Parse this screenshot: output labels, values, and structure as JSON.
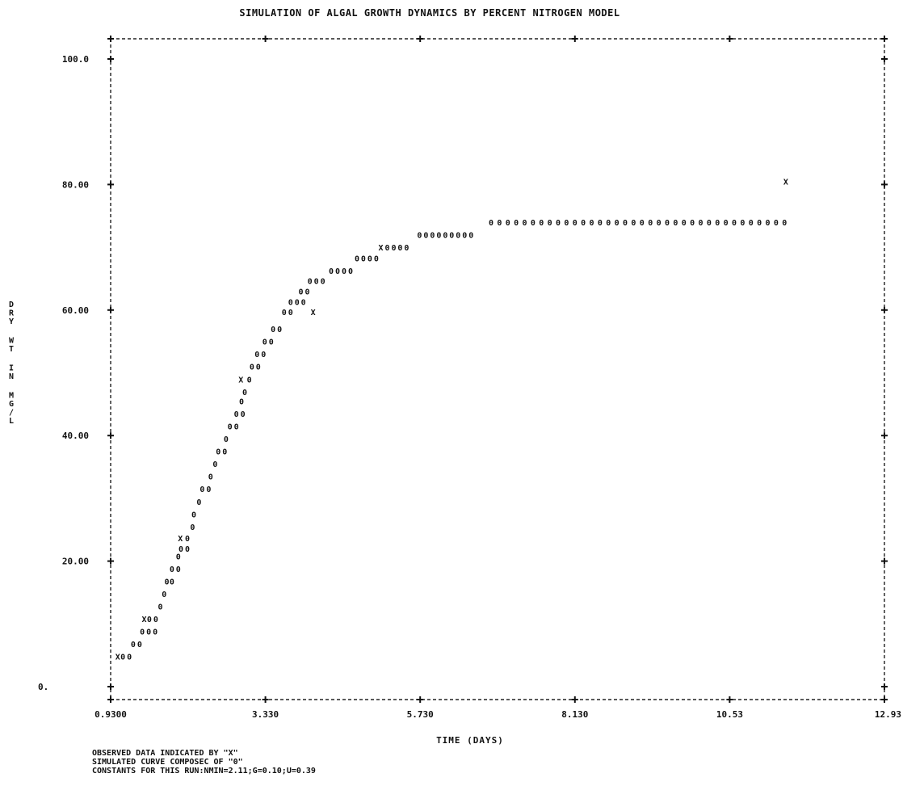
{
  "chart_data": {
    "type": "scatter",
    "title": "SIMULATION OF ALGAL GROWTH DYNAMICS BY PERCENT NITROGEN MODEL",
    "xlabel": "TIME (DAYS)",
    "ylabel": "DRY WT IN MG/L",
    "xlim": [
      0.93,
      12.93
    ],
    "ylim": [
      0,
      100
    ],
    "x_ticks": [
      "0.9300",
      "3.330",
      "5.730",
      "8.130",
      "10.53",
      "12.93"
    ],
    "y_ticks": [
      "0.",
      "20.00",
      "40.00",
      "60.00",
      "80.00",
      "100.0"
    ],
    "series": [
      {
        "marker": "X",
        "points": [
          {
            "x": 1.04,
            "y": 4.8
          },
          {
            "x": 1.45,
            "y": 10.8
          },
          {
            "x": 2.01,
            "y": 23.7
          },
          {
            "x": 2.95,
            "y": 49.0
          },
          {
            "x": 4.07,
            "y": 59.7
          },
          {
            "x": 5.12,
            "y": 70.0
          },
          {
            "x": 11.4,
            "y": 80.5
          }
        ]
      },
      {
        "marker": "0",
        "points": [
          {
            "x": 1.12,
            "y": 4.8
          },
          {
            "x": 1.22,
            "y": 4.8
          },
          {
            "x": 1.28,
            "y": 6.8
          },
          {
            "x": 1.38,
            "y": 6.8
          },
          {
            "x": 1.42,
            "y": 8.8
          },
          {
            "x": 1.52,
            "y": 8.8
          },
          {
            "x": 1.62,
            "y": 8.8
          },
          {
            "x": 1.53,
            "y": 10.8
          },
          {
            "x": 1.63,
            "y": 10.8
          },
          {
            "x": 1.7,
            "y": 12.8
          },
          {
            "x": 1.76,
            "y": 14.8
          },
          {
            "x": 1.8,
            "y": 16.8
          },
          {
            "x": 1.88,
            "y": 16.8
          },
          {
            "x": 1.88,
            "y": 18.8
          },
          {
            "x": 1.98,
            "y": 18.8
          },
          {
            "x": 1.98,
            "y": 20.8
          },
          {
            "x": 2.02,
            "y": 22.0
          },
          {
            "x": 2.12,
            "y": 22.0
          },
          {
            "x": 2.12,
            "y": 23.7
          },
          {
            "x": 2.2,
            "y": 25.5
          },
          {
            "x": 2.22,
            "y": 27.5
          },
          {
            "x": 2.3,
            "y": 29.5
          },
          {
            "x": 2.35,
            "y": 31.5
          },
          {
            "x": 2.45,
            "y": 31.5
          },
          {
            "x": 2.48,
            "y": 33.5
          },
          {
            "x": 2.55,
            "y": 35.5
          },
          {
            "x": 2.6,
            "y": 37.5
          },
          {
            "x": 2.7,
            "y": 37.5
          },
          {
            "x": 2.72,
            "y": 39.5
          },
          {
            "x": 2.78,
            "y": 41.5
          },
          {
            "x": 2.88,
            "y": 41.5
          },
          {
            "x": 2.88,
            "y": 43.5
          },
          {
            "x": 2.98,
            "y": 43.5
          },
          {
            "x": 2.96,
            "y": 45.5
          },
          {
            "x": 3.01,
            "y": 47.0
          },
          {
            "x": 3.08,
            "y": 49.0
          },
          {
            "x": 3.12,
            "y": 51.0
          },
          {
            "x": 3.22,
            "y": 51.0
          },
          {
            "x": 3.2,
            "y": 53.0
          },
          {
            "x": 3.3,
            "y": 53.0
          },
          {
            "x": 3.32,
            "y": 55.0
          },
          {
            "x": 3.42,
            "y": 55.0
          },
          {
            "x": 3.45,
            "y": 57.0
          },
          {
            "x": 3.55,
            "y": 57.0
          },
          {
            "x": 3.62,
            "y": 59.7
          },
          {
            "x": 3.72,
            "y": 59.7
          },
          {
            "x": 3.72,
            "y": 61.3
          },
          {
            "x": 3.82,
            "y": 61.3
          },
          {
            "x": 3.92,
            "y": 61.3
          },
          {
            "x": 3.88,
            "y": 63.0
          },
          {
            "x": 3.98,
            "y": 63.0
          },
          {
            "x": 4.02,
            "y": 64.7
          },
          {
            "x": 4.12,
            "y": 64.7
          },
          {
            "x": 4.22,
            "y": 64.7
          },
          {
            "x": 4.35,
            "y": 66.3
          },
          {
            "x": 4.45,
            "y": 66.3
          },
          {
            "x": 4.55,
            "y": 66.3
          },
          {
            "x": 4.65,
            "y": 66.3
          },
          {
            "x": 4.75,
            "y": 68.3
          },
          {
            "x": 4.85,
            "y": 68.3
          },
          {
            "x": 4.95,
            "y": 68.3
          },
          {
            "x": 5.05,
            "y": 68.3
          },
          {
            "x": 5.22,
            "y": 70.0
          },
          {
            "x": 5.32,
            "y": 70.0
          },
          {
            "x": 5.42,
            "y": 70.0
          },
          {
            "x": 5.52,
            "y": 70.0
          },
          {
            "x": 5.72,
            "y": 72.0
          },
          {
            "x": 5.82,
            "y": 72.0
          },
          {
            "x": 5.92,
            "y": 72.0
          },
          {
            "x": 6.02,
            "y": 72.0
          },
          {
            "x": 6.12,
            "y": 72.0
          },
          {
            "x": 6.22,
            "y": 72.0
          },
          {
            "x": 6.32,
            "y": 72.0
          },
          {
            "x": 6.42,
            "y": 72.0
          },
          {
            "x": 6.52,
            "y": 72.0
          },
          {
            "x": 6.83,
            "y": 74.0
          },
          {
            "x": 6.96,
            "y": 74.0
          },
          {
            "x": 7.09,
            "y": 74.0
          },
          {
            "x": 7.22,
            "y": 74.0
          },
          {
            "x": 7.35,
            "y": 74.0
          },
          {
            "x": 7.48,
            "y": 74.0
          },
          {
            "x": 7.61,
            "y": 74.0
          },
          {
            "x": 7.74,
            "y": 74.0
          },
          {
            "x": 7.87,
            "y": 74.0
          },
          {
            "x": 8.0,
            "y": 74.0
          },
          {
            "x": 8.13,
            "y": 74.0
          },
          {
            "x": 8.26,
            "y": 74.0
          },
          {
            "x": 8.39,
            "y": 74.0
          },
          {
            "x": 8.52,
            "y": 74.0
          },
          {
            "x": 8.65,
            "y": 74.0
          },
          {
            "x": 8.78,
            "y": 74.0
          },
          {
            "x": 8.91,
            "y": 74.0
          },
          {
            "x": 9.04,
            "y": 74.0
          },
          {
            "x": 9.17,
            "y": 74.0
          },
          {
            "x": 9.3,
            "y": 74.0
          },
          {
            "x": 9.43,
            "y": 74.0
          },
          {
            "x": 9.56,
            "y": 74.0
          },
          {
            "x": 9.69,
            "y": 74.0
          },
          {
            "x": 9.82,
            "y": 74.0
          },
          {
            "x": 9.95,
            "y": 74.0
          },
          {
            "x": 10.08,
            "y": 74.0
          },
          {
            "x": 10.21,
            "y": 74.0
          },
          {
            "x": 10.34,
            "y": 74.0
          },
          {
            "x": 10.47,
            "y": 74.0
          },
          {
            "x": 10.6,
            "y": 74.0
          },
          {
            "x": 10.73,
            "y": 74.0
          },
          {
            "x": 10.86,
            "y": 74.0
          },
          {
            "x": 10.99,
            "y": 74.0
          },
          {
            "x": 11.12,
            "y": 74.0
          },
          {
            "x": 11.25,
            "y": 74.0
          },
          {
            "x": 11.38,
            "y": 74.0
          }
        ]
      }
    ],
    "notes": [
      "OBSERVED DATA INDICATED BY \"X\"",
      "SIMULATED CURVE COMPOSEC OF \"0\"",
      "CONSTANTS FOR THIS RUN:NMIN=2.11;G=0.10;U=0.39"
    ]
  }
}
